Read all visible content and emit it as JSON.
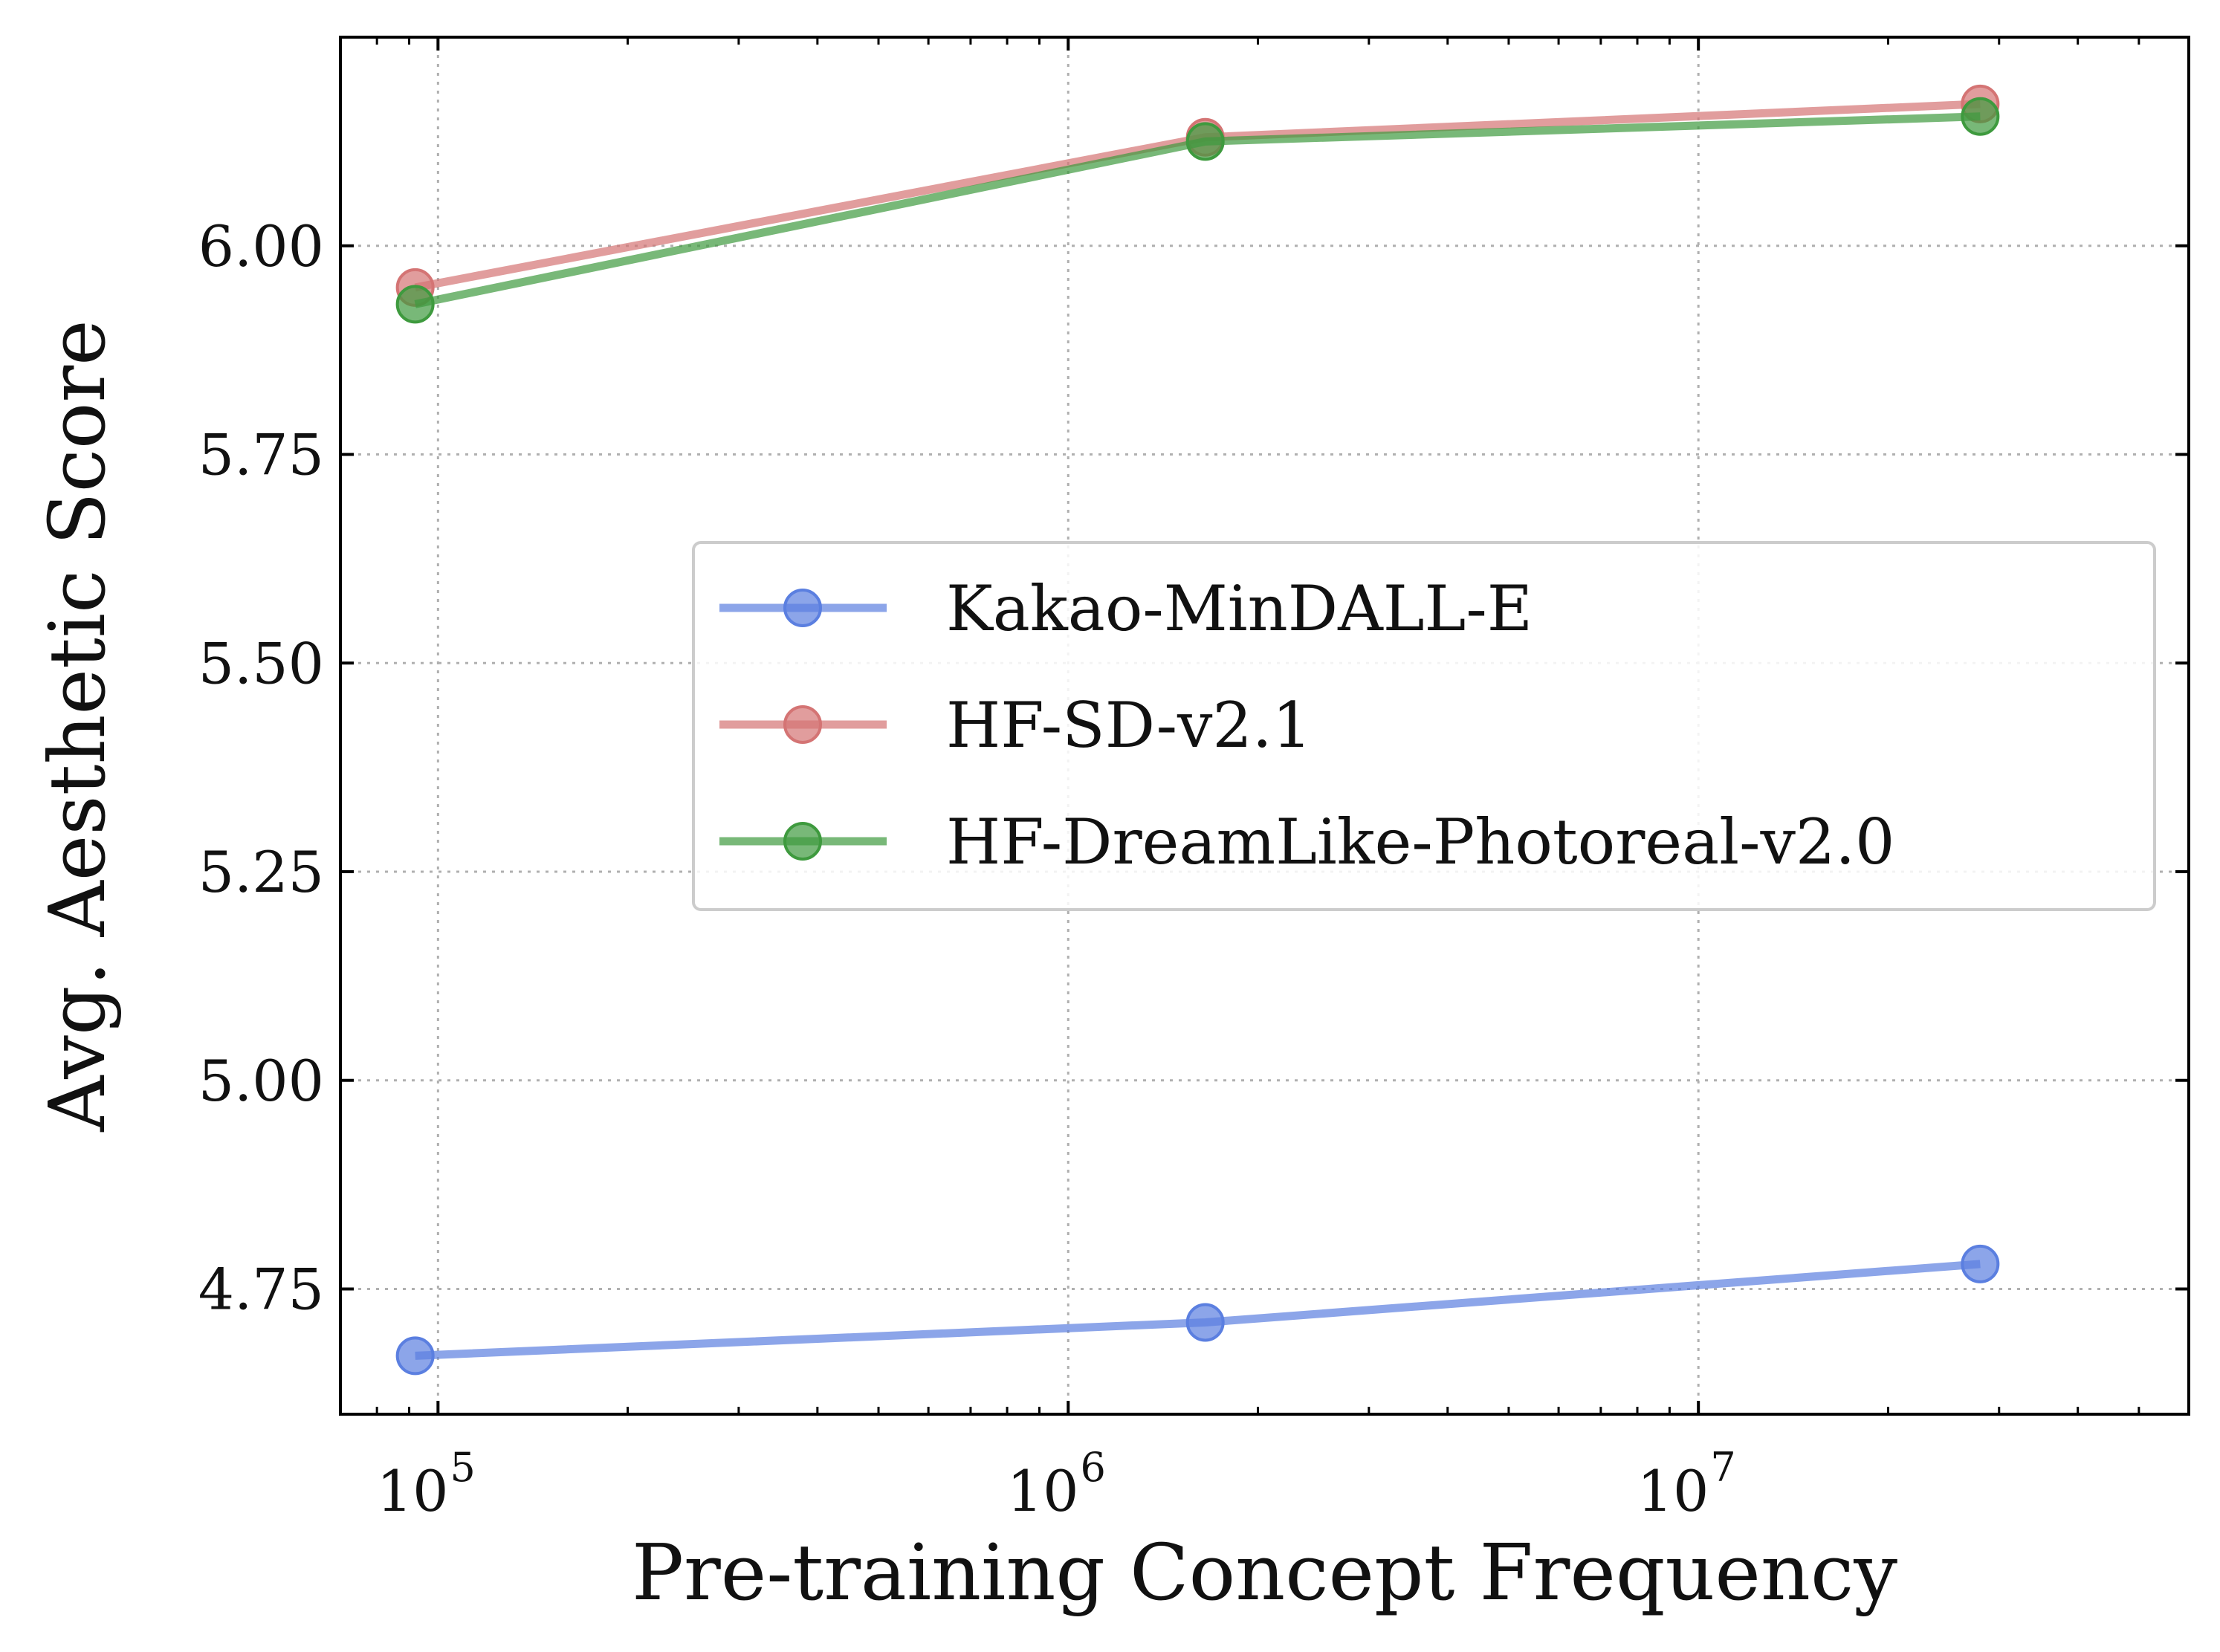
{
  "chart_data": {
    "type": "line",
    "xlabel": "Pre-training Concept Frequency",
    "ylabel": "Avg. Aesthetic Score",
    "x_scale": "log",
    "xlim": [
      70000,
      60000000
    ],
    "ylim": [
      4.6,
      6.25
    ],
    "x_major_ticks": [
      {
        "value": 100000,
        "base": "10",
        "exp": "5"
      },
      {
        "value": 1000000,
        "base": "10",
        "exp": "6"
      },
      {
        "value": 10000000,
        "base": "10",
        "exp": "7"
      }
    ],
    "y_ticks": [
      {
        "value": 4.75,
        "label": "4.75"
      },
      {
        "value": 5.0,
        "label": "5.00"
      },
      {
        "value": 5.25,
        "label": "5.25"
      },
      {
        "value": 5.5,
        "label": "5.50"
      },
      {
        "value": 5.75,
        "label": "5.75"
      },
      {
        "value": 6.0,
        "label": "6.00"
      }
    ],
    "grid": true,
    "legend_position": "center-right",
    "series": [
      {
        "name": "Kakao-MinDALL-E",
        "color": "#5b7fe0",
        "x": [
          92000,
          1650000,
          28000000
        ],
        "y": [
          4.67,
          4.71,
          4.78
        ]
      },
      {
        "name": "HF-SD-v2.1",
        "color": "#d47474",
        "x": [
          92000,
          1650000,
          28000000
        ],
        "y": [
          5.95,
          6.13,
          6.17
        ]
      },
      {
        "name": "HF-DreamLike-Photoreal-v2.0",
        "color": "#3e9a3e",
        "x": [
          92000,
          1650000,
          28000000
        ],
        "y": [
          5.93,
          6.125,
          6.155
        ]
      }
    ]
  }
}
